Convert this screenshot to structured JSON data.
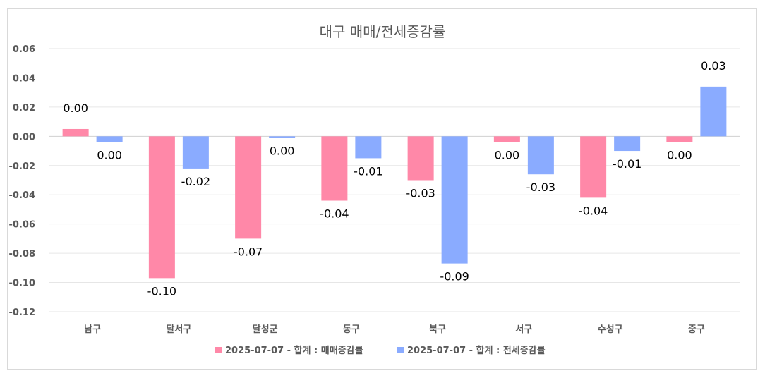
{
  "chart_data": {
    "type": "bar",
    "title": "대구 매매/전세증감률",
    "categories": [
      "남구",
      "달서구",
      "달성군",
      "동구",
      "북구",
      "서구",
      "수성구",
      "중구"
    ],
    "series": [
      {
        "name": "2025-07-07 - 합계 : 매매증감률",
        "color": "#ff88a8",
        "values": [
          0.005,
          -0.097,
          -0.07,
          -0.044,
          -0.03,
          -0.004,
          -0.042,
          -0.004
        ],
        "labels": [
          "0.00",
          "-0.10",
          "-0.07",
          "-0.04",
          "-0.03",
          "0.00",
          "-0.04",
          "0.00"
        ]
      },
      {
        "name": "2025-07-07 - 합계 : 전세증감률",
        "color": "#8aabff",
        "values": [
          -0.004,
          -0.022,
          -0.001,
          -0.015,
          -0.087,
          -0.026,
          -0.01,
          0.034
        ],
        "labels": [
          "0.00",
          "-0.02",
          "0.00",
          "-0.01",
          "-0.09",
          "-0.03",
          "-0.01",
          "0.03"
        ]
      }
    ],
    "ylim": [
      -0.12,
      0.06
    ],
    "yticks": [
      "0.06",
      "0.04",
      "0.02",
      "0.00",
      "-0.02",
      "-0.04",
      "-0.06",
      "-0.08",
      "-0.10",
      "-0.12"
    ],
    "ytick_values": [
      0.06,
      0.04,
      0.02,
      0.0,
      -0.02,
      -0.04,
      -0.06,
      -0.08,
      -0.1,
      -0.12
    ],
    "grid": true,
    "legend": "bottom"
  }
}
